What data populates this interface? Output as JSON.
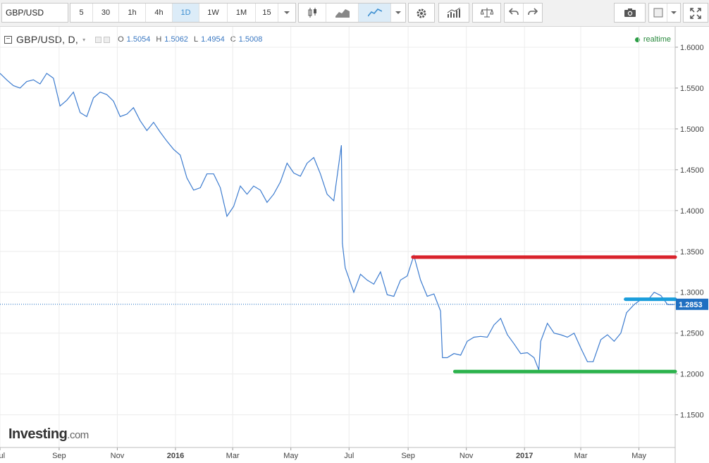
{
  "toolbar": {
    "symbol": "GBP/USD",
    "intervals": [
      "5",
      "30",
      "1h",
      "4h",
      "1D",
      "1W",
      "1M",
      "15"
    ],
    "active_interval": "1D",
    "icons": [
      "candlestick-icon",
      "area-chart-icon",
      "line-chart-icon",
      "dropdown-icon",
      "settings-icon",
      "indicators-icon",
      "compare-icon",
      "undo-icon",
      "redo-icon",
      "camera-icon",
      "template-icon",
      "fullscreen-icon"
    ]
  },
  "header": {
    "collapse": "−",
    "title": "GBP/USD, D,",
    "caret": "▾",
    "o_label": "O",
    "o_value": "1.5054",
    "h_label": "H",
    "h_value": "1.5062",
    "l_label": "L",
    "l_value": "1.4954",
    "c_label": "C",
    "c_value": "1.5008",
    "realtime": "realtime"
  },
  "colors": {
    "line": "#3d7ccf",
    "resistance": "#d9232c",
    "support": "#2bb24c",
    "price_level": "#1a9ddb",
    "last_price_tag": "#1f6fc1",
    "grid": "#ececec"
  },
  "chart_data": {
    "type": "line",
    "title": "GBP/USD, D,",
    "ylim": [
      1.11,
      1.625
    ],
    "yticks": [
      1.15,
      1.2,
      1.25,
      1.3,
      1.35,
      1.4,
      1.45,
      1.5,
      1.55,
      1.6
    ],
    "ytick_labels": [
      "1.1500",
      "1.2000",
      "1.2500",
      "1.3000",
      "1.3500",
      "1.4000",
      "1.4500",
      "1.5000",
      "1.5500",
      "1.6000"
    ],
    "xlim": [
      "2015-07-01",
      "2017-06-08"
    ],
    "xticks": [
      "2015-07-01",
      "2015-09-01",
      "2015-11-01",
      "2016-01-01",
      "2016-03-01",
      "2016-05-01",
      "2016-07-01",
      "2016-09-01",
      "2016-11-01",
      "2017-01-01",
      "2017-03-01",
      "2017-05-01"
    ],
    "xtick_labels": [
      "Jul",
      "Sep",
      "Nov",
      "2016",
      "Mar",
      "May",
      "Jul",
      "Sep",
      "Nov",
      "2017",
      "Mar",
      "May"
    ],
    "last_price": 1.2853,
    "last_price_label": "1.2853",
    "series": [
      {
        "x": [
          "2015-07-01",
          "2015-07-08",
          "2015-07-15",
          "2015-07-22",
          "2015-07-29",
          "2015-08-05",
          "2015-08-12",
          "2015-08-19",
          "2015-08-26",
          "2015-09-02",
          "2015-09-09",
          "2015-09-16",
          "2015-09-23",
          "2015-09-30",
          "2015-10-07",
          "2015-10-14",
          "2015-10-21",
          "2015-10-28",
          "2015-11-04",
          "2015-11-11",
          "2015-11-18",
          "2015-11-25",
          "2015-12-02",
          "2015-12-09",
          "2015-12-16",
          "2015-12-23",
          "2015-12-30",
          "2016-01-06",
          "2016-01-13",
          "2016-01-20",
          "2016-01-27",
          "2016-02-03",
          "2016-02-10",
          "2016-02-17",
          "2016-02-24",
          "2016-03-02",
          "2016-03-09",
          "2016-03-16",
          "2016-03-23",
          "2016-03-30",
          "2016-04-06",
          "2016-04-13",
          "2016-04-20",
          "2016-04-27",
          "2016-05-04",
          "2016-05-11",
          "2016-05-18",
          "2016-05-25",
          "2016-06-01",
          "2016-06-08",
          "2016-06-15",
          "2016-06-23",
          "2016-06-24",
          "2016-06-27",
          "2016-07-06",
          "2016-07-13",
          "2016-07-20",
          "2016-07-27",
          "2016-08-03",
          "2016-08-10",
          "2016-08-17",
          "2016-08-24",
          "2016-08-31",
          "2016-09-07",
          "2016-09-14",
          "2016-09-21",
          "2016-09-28",
          "2016-10-05",
          "2016-10-07",
          "2016-10-12",
          "2016-10-19",
          "2016-10-26",
          "2016-11-02",
          "2016-11-09",
          "2016-11-16",
          "2016-11-23",
          "2016-11-30",
          "2016-12-07",
          "2016-12-14",
          "2016-12-21",
          "2016-12-28",
          "2017-01-04",
          "2017-01-11",
          "2017-01-16",
          "2017-01-18",
          "2017-01-25",
          "2017-02-01",
          "2017-02-08",
          "2017-02-15",
          "2017-02-22",
          "2017-03-01",
          "2017-03-08",
          "2017-03-14",
          "2017-03-22",
          "2017-03-29",
          "2017-04-05",
          "2017-04-12",
          "2017-04-18",
          "2017-04-26",
          "2017-05-03",
          "2017-05-10",
          "2017-05-17",
          "2017-05-24",
          "2017-05-31",
          "2017-06-07"
        ],
        "values": [
          1.568,
          1.56,
          1.553,
          1.55,
          1.558,
          1.56,
          1.555,
          1.568,
          1.562,
          1.528,
          1.535,
          1.545,
          1.52,
          1.515,
          1.538,
          1.545,
          1.542,
          1.534,
          1.515,
          1.518,
          1.526,
          1.51,
          1.498,
          1.508,
          1.496,
          1.485,
          1.475,
          1.468,
          1.44,
          1.425,
          1.428,
          1.445,
          1.445,
          1.428,
          1.393,
          1.405,
          1.43,
          1.42,
          1.43,
          1.425,
          1.41,
          1.42,
          1.435,
          1.458,
          1.446,
          1.442,
          1.458,
          1.465,
          1.445,
          1.42,
          1.412,
          1.48,
          1.36,
          1.33,
          1.3,
          1.322,
          1.315,
          1.31,
          1.325,
          1.297,
          1.295,
          1.315,
          1.32,
          1.345,
          1.315,
          1.295,
          1.298,
          1.277,
          1.22,
          1.22,
          1.225,
          1.223,
          1.24,
          1.245,
          1.246,
          1.245,
          1.26,
          1.268,
          1.248,
          1.237,
          1.225,
          1.226,
          1.22,
          1.205,
          1.24,
          1.262,
          1.25,
          1.248,
          1.245,
          1.25,
          1.232,
          1.215,
          1.215,
          1.242,
          1.248,
          1.24,
          1.25,
          1.275,
          1.285,
          1.291,
          1.29,
          1.3,
          1.296,
          1.285,
          1.285
        ]
      }
    ],
    "lines": [
      {
        "type": "resistance",
        "y": 1.343,
        "x_start": "2016-09-06",
        "x_end": "2017-06-08",
        "color": "#d9232c"
      },
      {
        "type": "support",
        "y": 1.203,
        "x_start": "2016-10-20",
        "x_end": "2017-06-08",
        "color": "#2bb24c"
      },
      {
        "type": "price-level",
        "y": 1.2915,
        "x_start": "2017-04-17",
        "x_end": "2017-06-08",
        "color": "#1a9ddb"
      }
    ],
    "grid": true,
    "legend": "none"
  },
  "logo": {
    "text": "Investing",
    "suffix": ".com"
  }
}
